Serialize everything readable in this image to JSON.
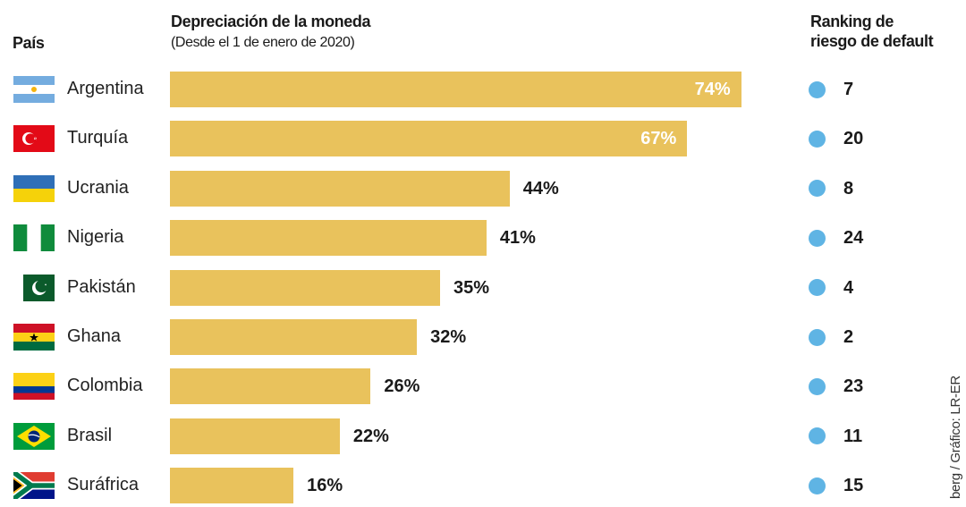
{
  "header": {
    "country_label": "País",
    "title": "Depreciación de la moneda",
    "subtitle": "(Desde el 1 de enero de 2020)",
    "rank_label_line1": "Ranking de",
    "rank_label_line2": "riesgo de default"
  },
  "source_text": "berg / Gráfico: LR-ER",
  "colors": {
    "bar": "#E9C25C",
    "label_inside": "#ffffff",
    "label_outside": "#1a1a1a",
    "dot": "#5FB4E4"
  },
  "chart_data": {
    "type": "bar",
    "orientation": "horizontal",
    "title": "Depreciación de la moneda",
    "subtitle": "(Desde el 1 de enero de 2020)",
    "unit": "%",
    "categories": [
      "Argentina",
      "Turquía",
      "Ucrania",
      "Nigeria",
      "Pakistán",
      "Ghana",
      "Colombia",
      "Brasil",
      "Suráfrica"
    ],
    "values": [
      74,
      67,
      44,
      41,
      35,
      32,
      26,
      22,
      16
    ],
    "value_labels": [
      "74%",
      "67%",
      "44%",
      "41%",
      "35%",
      "32%",
      "26%",
      "22%",
      "16%"
    ],
    "flag_icons": [
      "argentina-flag-icon",
      "turkey-flag-icon",
      "ukraine-flag-icon",
      "nigeria-flag-icon",
      "pakistan-flag-icon",
      "ghana-flag-icon",
      "colombia-flag-icon",
      "brazil-flag-icon",
      "south-africa-flag-icon"
    ],
    "default_risk_ranking": {
      "title": "Ranking de riesgo de default",
      "values": [
        7,
        20,
        8,
        24,
        4,
        2,
        23,
        11,
        15
      ]
    },
    "labels_inside_bar": [
      true,
      true,
      false,
      false,
      false,
      false,
      false,
      false,
      false
    ]
  }
}
